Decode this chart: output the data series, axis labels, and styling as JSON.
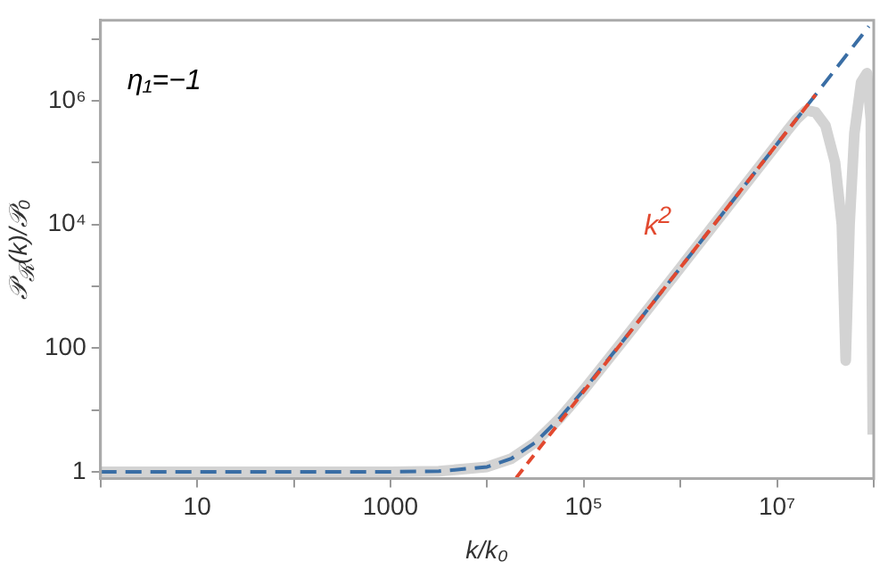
{
  "chart_data": {
    "type": "line",
    "xlabel": "k/k₀",
    "ylabel": "𝒫$_{ℛ}$(k)/𝒫₀",
    "log": "xy",
    "grid": false,
    "legend": false,
    "marker": "none",
    "xlim": [
      1,
      100000000
    ],
    "ylim": [
      0.78,
      20000000
    ],
    "xticks": [
      {
        "value": 1,
        "label": null
      },
      10,
      {
        "value": 100,
        "label": null
      },
      1000,
      {
        "value": 10000,
        "label": null
      },
      {
        "value": 100000,
        "label": "10⁵"
      },
      {
        "value": 1000000,
        "label": null
      },
      {
        "value": 10000000,
        "label": "10⁷"
      },
      {
        "value": 100000000,
        "label": null
      }
    ],
    "yticks": [
      1,
      {
        "value": 10,
        "label": null
      },
      100,
      {
        "value": 1000,
        "label": null
      },
      {
        "value": 10000,
        "label": "10⁴"
      },
      {
        "value": 100000,
        "label": null
      },
      {
        "value": 1000000,
        "label": "10⁶"
      },
      {
        "value": 10000000,
        "label": null
      }
    ],
    "annotations": [
      "η₁=−1",
      "k$^{2}$"
    ],
    "series": [
      {
        "color": "#d3d3d3",
        "line_style": "solid",
        "x": [
          1,
          10,
          100,
          1000,
          3162,
          10000,
          17780,
          31620,
          56230,
          100000,
          316200,
          1000000,
          3162000,
          10000000,
          12590000,
          15850000,
          19950000,
          25120000,
          31620000,
          39810000,
          46770000,
          51290000,
          56230000,
          63100000,
          74130000,
          85110000,
          93330000,
          97720000
        ],
        "values": [
          1,
          1,
          1,
          1,
          1.02,
          1.2,
          1.63,
          3,
          7.3,
          21,
          201,
          2000,
          20000,
          200000,
          320000,
          500000,
          700000,
          650000,
          400000,
          100000,
          10000,
          63,
          10000,
          300000,
          2000000,
          2800000,
          500000,
          4
        ]
      },
      {
        "color": "#3a6ea5",
        "line_style": "dashed",
        "x": [
          1,
          10,
          100,
          1000,
          3162,
          10000,
          17780,
          31620,
          56230,
          100000,
          316200,
          1000000,
          3162000,
          10000000,
          31620000,
          89000000
        ],
        "values": [
          1,
          1,
          1,
          1,
          1.02,
          1.2,
          1.63,
          3,
          7.3,
          21,
          201,
          2000,
          20000,
          200000,
          2000000,
          16000000
        ]
      },
      {
        "color": "#e2492f",
        "line_style": "dashed",
        "x": [
          20000,
          25000000
        ],
        "values": [
          0.8,
          1250000
        ]
      }
    ]
  }
}
